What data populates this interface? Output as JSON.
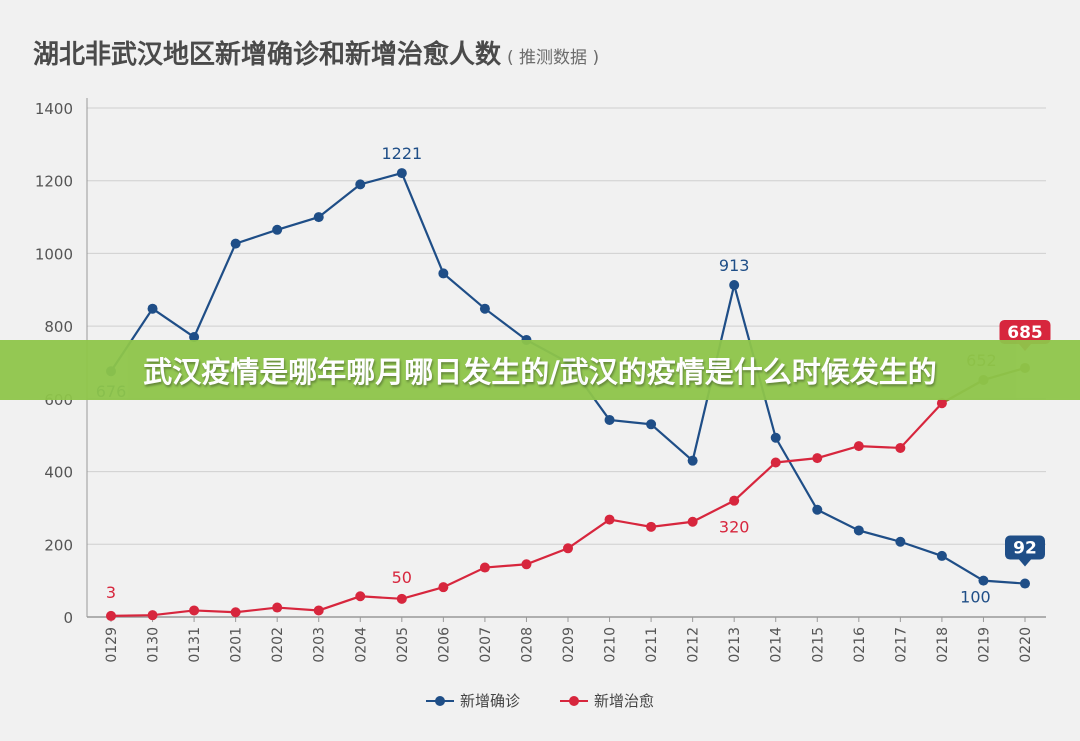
{
  "header": {
    "title": "湖北非武汉地区新增确诊和新增治愈人数",
    "subtitle": "( 推测数据 )"
  },
  "banner": {
    "text": "武汉疫情是哪年哪月哪日发生的/武汉的疫情是什么时候发生的"
  },
  "colors": {
    "confirmed": "#1f4e87",
    "cured": "#d7263d",
    "cured_projection": "#8a7a2e",
    "grid": "#cfcfcf",
    "axis_text": "#555555"
  },
  "chart_data": {
    "type": "line",
    "title": "湖北非武汉地区新增确诊和新增治愈人数",
    "subtitle": "( 推测数据 )",
    "xlabel": "",
    "ylabel": "",
    "ylim": [
      0,
      1400
    ],
    "yticks": [
      0,
      200,
      400,
      600,
      800,
      1000,
      1200,
      1400
    ],
    "grid": true,
    "legend_position": "bottom-center",
    "categories": [
      "0129",
      "0130",
      "0131",
      "0201",
      "0202",
      "0203",
      "0204",
      "0205",
      "0206",
      "0207",
      "0208",
      "0209",
      "0210",
      "0211",
      "0212",
      "0213",
      "0214",
      "0215",
      "0216",
      "0217",
      "0218",
      "0219",
      "0220"
    ],
    "series": [
      {
        "name": "新增确诊",
        "color": "#1f4e87",
        "values": [
          676,
          848,
          770,
          1027,
          1065,
          1100,
          1190,
          1221,
          945,
          848,
          762,
          700,
          542,
          530,
          430,
          913,
          493,
          295,
          238,
          207,
          168,
          100,
          92
        ]
      },
      {
        "name": "新增治愈",
        "color": "#d7263d",
        "values": [
          3,
          5,
          18,
          13,
          26,
          18,
          57,
          50,
          82,
          136,
          145,
          189,
          268,
          248,
          262,
          320,
          425,
          437,
          470,
          465,
          588,
          652,
          685
        ]
      }
    ],
    "annotations": [
      {
        "series": 0,
        "index": 0,
        "text": "676"
      },
      {
        "series": 0,
        "index": 7,
        "text": "1221"
      },
      {
        "series": 0,
        "index": 15,
        "text": "913"
      },
      {
        "series": 0,
        "index": 21,
        "text": "100"
      },
      {
        "series": 0,
        "index": 22,
        "text": "92",
        "badge": true
      },
      {
        "series": 1,
        "index": 0,
        "text": "3"
      },
      {
        "series": 1,
        "index": 7,
        "text": "50"
      },
      {
        "series": 1,
        "index": 15,
        "text": "320"
      },
      {
        "series": 1,
        "index": 21,
        "text": "652"
      },
      {
        "series": 1,
        "index": 22,
        "text": "685",
        "badge": true
      }
    ]
  }
}
